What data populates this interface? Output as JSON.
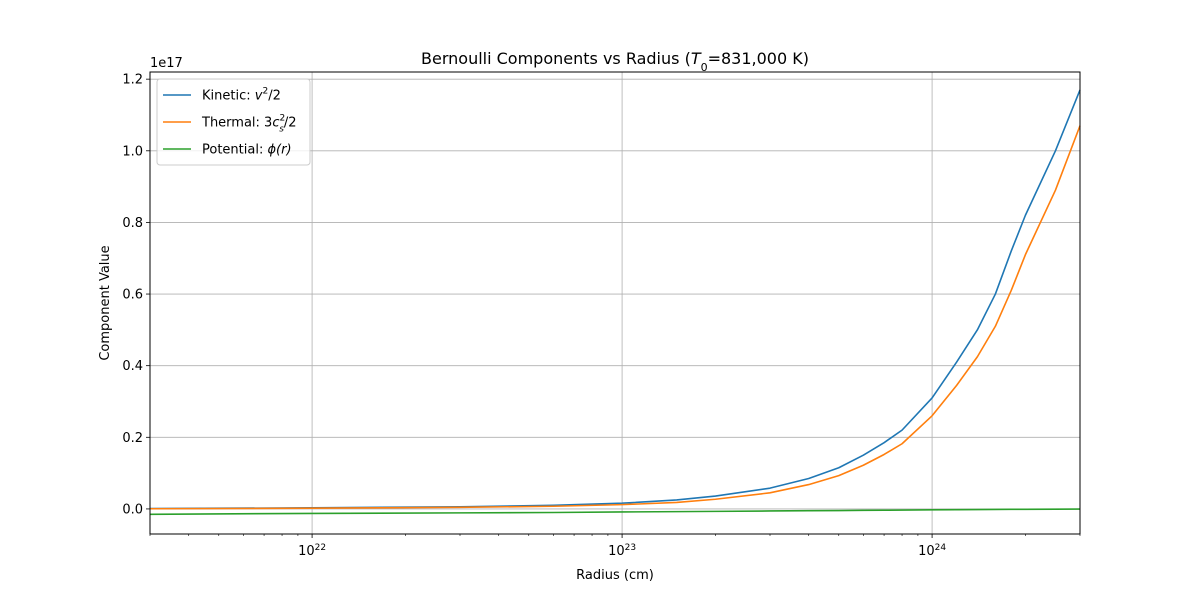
{
  "chart_data": {
    "type": "line",
    "title": "Bernoulli Components vs Radius (T0=831,000 K)",
    "title_parts": [
      "Bernoulli Components vs Radius (",
      "T",
      "0",
      "=831,000 K)"
    ],
    "xlabel": "Radius (cm)",
    "ylabel": "Component Value",
    "y_offset_label": "1e17",
    "xscale": "log",
    "xlim": [
      3e+21,
      3e+24
    ],
    "ylim": [
      -0.07,
      1.22
    ],
    "x_ticks": [
      {
        "value": 1e+22,
        "base": "10",
        "exp": "22"
      },
      {
        "value": 1e+23,
        "base": "10",
        "exp": "23"
      },
      {
        "value": 1e+24,
        "base": "10",
        "exp": "24"
      }
    ],
    "y_ticks": [
      {
        "value": 0.0,
        "label": "0.0"
      },
      {
        "value": 0.2,
        "label": "0.2"
      },
      {
        "value": 0.4,
        "label": "0.4"
      },
      {
        "value": 0.6,
        "label": "0.6"
      },
      {
        "value": 0.8,
        "label": "0.8"
      },
      {
        "value": 1.0,
        "label": "1.0"
      },
      {
        "value": 1.2,
        "label": "1.2"
      }
    ],
    "grid": true,
    "legend_position": "upper-left",
    "x": [
      3e+21,
      1e+22,
      3e+22,
      6e+22,
      1e+23,
      1.5e+23,
      2e+23,
      3e+23,
      4e+23,
      5e+23,
      6e+23,
      7e+23,
      8e+23,
      1e+24,
      1.2e+24,
      1.4e+24,
      1.6e+24,
      1.8e+24,
      2e+24,
      2.5e+24,
      3e+24
    ],
    "series": [
      {
        "name": "Kinetic: v²/2",
        "legend": {
          "prefix": "Kinetic: ",
          "var": "v",
          "sup": "2",
          "sub": "",
          "suffix": "/2"
        },
        "color": "#1f77b4",
        "values": [
          0.001,
          0.003,
          0.006,
          0.01,
          0.016,
          0.025,
          0.036,
          0.058,
          0.085,
          0.115,
          0.15,
          0.185,
          0.22,
          0.31,
          0.41,
          0.5,
          0.6,
          0.72,
          0.82,
          1.0,
          1.17
        ]
      },
      {
        "name": "Thermal: 3cs²/2",
        "legend": {
          "prefix": "Thermal: 3",
          "var": "c",
          "sup": "2",
          "sub": "s",
          "suffix": "/2"
        },
        "color": "#ff7f0e",
        "values": [
          0.0005,
          0.002,
          0.0045,
          0.0075,
          0.012,
          0.018,
          0.027,
          0.045,
          0.068,
          0.093,
          0.122,
          0.152,
          0.182,
          0.26,
          0.345,
          0.425,
          0.51,
          0.61,
          0.71,
          0.89,
          1.07
        ]
      },
      {
        "name": "Potential: φ(r)",
        "legend": {
          "prefix": "Potential: ",
          "var": "ϕ(r)",
          "sup": "",
          "sub": "",
          "suffix": ""
        },
        "color": "#2ca02c",
        "values": [
          -0.015,
          -0.0125,
          -0.011,
          -0.01,
          -0.0085,
          -0.0075,
          -0.0068,
          -0.0057,
          -0.005,
          -0.0045,
          -0.004,
          -0.0036,
          -0.0033,
          -0.0025,
          -0.002,
          -0.0017,
          -0.0014,
          -0.0012,
          -0.001,
          -0.0007,
          -0.0005
        ]
      }
    ]
  }
}
